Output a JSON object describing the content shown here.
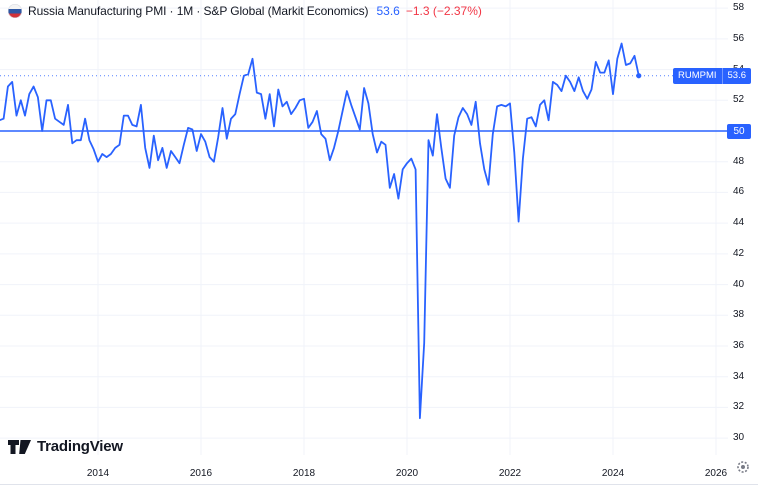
{
  "legend": {
    "title": "Russia Manufacturing PMI · 1M · S&P Global (Markit Economics)",
    "value": "53.6",
    "change": "−1.3 (−2.37%)"
  },
  "price_axis": {
    "ticks": [
      58,
      56,
      54,
      52,
      50,
      48,
      46,
      44,
      42,
      40,
      38,
      36,
      34,
      32,
      30
    ],
    "symbol_badge": {
      "symbol": "RUMPMI",
      "value": "53.6"
    },
    "level_badge": {
      "value": "50"
    }
  },
  "time_axis": {
    "years": [
      2014,
      2016,
      2018,
      2020,
      2022,
      2024,
      2026
    ]
  },
  "footer": {
    "brand": "TradingView"
  },
  "colors": {
    "line": "#2962FF",
    "value_text": "#2962FF",
    "change_text": "#F23645",
    "grid": "#f0f3fa",
    "axis_text": "#131722",
    "badge": "#2962FF",
    "border": "#e0e3eb",
    "logo": "#131722",
    "gear": "#787b86"
  },
  "chart_data": {
    "type": "line",
    "title": "Russia Manufacturing PMI",
    "symbol": "RUMPMI",
    "frequency": "monthly",
    "start": "2012-01",
    "end": "2024-07",
    "values": [
      50.8,
      50.7,
      50.8,
      52.9,
      53.2,
      51.0,
      52.0,
      51.0,
      52.4,
      52.9,
      52.2,
      50.0,
      52.0,
      52.0,
      50.8,
      50.6,
      50.4,
      51.7,
      49.2,
      49.4,
      49.4,
      50.8,
      49.4,
      48.8,
      48.0,
      48.5,
      48.3,
      48.5,
      48.9,
      49.1,
      51.0,
      51.0,
      50.4,
      50.3,
      51.7,
      48.9,
      47.6,
      49.7,
      48.1,
      48.9,
      47.6,
      48.7,
      48.3,
      47.9,
      49.1,
      50.2,
      50.1,
      48.7,
      49.8,
      49.3,
      48.3,
      48.0,
      49.6,
      51.5,
      49.5,
      50.8,
      51.1,
      52.4,
      53.6,
      53.7,
      54.7,
      52.5,
      52.4,
      50.8,
      52.4,
      50.3,
      52.7,
      51.6,
      51.9,
      51.1,
      51.5,
      52.0,
      52.1,
      50.2,
      50.6,
      51.3,
      49.8,
      49.5,
      48.1,
      48.9,
      50.0,
      51.3,
      52.6,
      51.7,
      50.9,
      50.1,
      52.8,
      51.8,
      49.8,
      48.6,
      49.3,
      49.1,
      46.3,
      47.2,
      45.6,
      47.5,
      47.9,
      48.2,
      47.5,
      31.3,
      36.2,
      49.4,
      48.4,
      51.1,
      48.9,
      46.9,
      46.3,
      49.7,
      50.9,
      51.5,
      51.1,
      50.4,
      51.9,
      49.2,
      47.5,
      46.5,
      49.8,
      51.6,
      51.7,
      51.6,
      51.8,
      48.6,
      44.1,
      48.2,
      50.8,
      50.9,
      50.3,
      51.7,
      52.0,
      50.7,
      53.2,
      53.0,
      52.6,
      53.6,
      53.2,
      52.6,
      53.5,
      52.6,
      52.1,
      52.7,
      54.5,
      53.8,
      53.8,
      54.6,
      52.4,
      54.7,
      55.7,
      54.3,
      54.4,
      54.9,
      53.6
    ],
    "last_value": 53.6,
    "previous_value": 54.9,
    "horizontal_level_line": 50,
    "last_value_dotted_line": 53.6,
    "ylim": [
      28.9,
      58.5
    ],
    "xlim": [
      "2012-01",
      "2026-03"
    ],
    "grid": true,
    "legend_position": "top-left"
  }
}
